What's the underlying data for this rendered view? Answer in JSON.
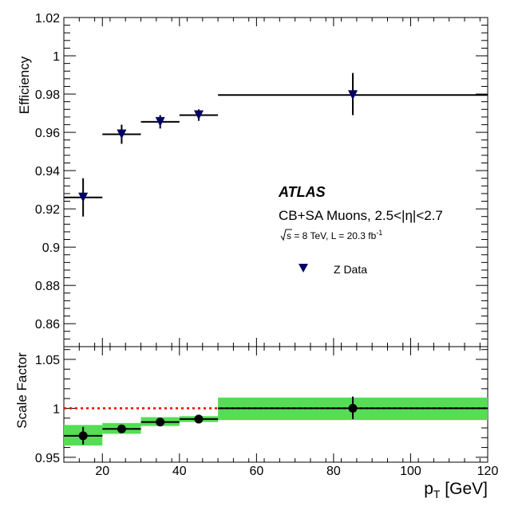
{
  "chart_data": [
    {
      "type": "scatter",
      "panel": "top",
      "ylabel": "Efficiency",
      "xlabel": "",
      "xlim": [
        10,
        120
      ],
      "ylim": [
        0.848,
        1.02
      ],
      "y_ticks": [
        0.86,
        0.88,
        0.9,
        0.92,
        0.94,
        0.96,
        0.98,
        1.0,
        1.02
      ],
      "y_tick_labels": [
        "0.86",
        "0.88",
        "0.9",
        "0.92",
        "0.94",
        "0.96",
        "0.98",
        "1",
        "1.02"
      ],
      "series": [
        {
          "name": "Z Data",
          "marker": "triangle-down",
          "color": "#000066",
          "points": [
            {
              "x": 15,
              "xlo": 10,
              "xhi": 20,
              "y": 0.926,
              "ylo": 0.916,
              "yhi": 0.936
            },
            {
              "x": 25,
              "xlo": 20,
              "xhi": 30,
              "y": 0.959,
              "ylo": 0.954,
              "yhi": 0.964
            },
            {
              "x": 35,
              "xlo": 30,
              "xhi": 40,
              "y": 0.9655,
              "ylo": 0.962,
              "yhi": 0.969
            },
            {
              "x": 45,
              "xlo": 40,
              "xhi": 50,
              "y": 0.969,
              "ylo": 0.966,
              "yhi": 0.972
            },
            {
              "x": 85,
              "xlo": 50,
              "xhi": 120,
              "y": 0.9795,
              "ylo": 0.969,
              "yhi": 0.991
            }
          ]
        }
      ],
      "annotations": {
        "experiment": "ATLAS",
        "selection": "CB+SA Muons, 2.5<|η|<2.7",
        "lumi_sqrt": "s",
        "lumi_rest": " = 8 TeV, L = 20.3 fb",
        "lumi_exp": "-1"
      },
      "legend": [
        {
          "label": "Z Data",
          "marker": "triangle-down"
        }
      ]
    },
    {
      "type": "scatter",
      "panel": "bottom",
      "ylabel": "Scale Factor",
      "xlabel": "p_T [GeV]",
      "xlabel_main": "p",
      "xlabel_sub": "T",
      "xlabel_unit": " [GeV]",
      "xlim": [
        10,
        120
      ],
      "ylim": [
        0.945,
        1.063
      ],
      "x_ticks": [
        20,
        40,
        60,
        80,
        100,
        120
      ],
      "x_tick_labels": [
        "20",
        "40",
        "60",
        "80",
        "100",
        "120"
      ],
      "y_ticks": [
        0.95,
        1.0,
        1.05
      ],
      "y_tick_labels": [
        "0.95",
        "1",
        "1.05"
      ],
      "reference_line": 1.0,
      "band_color": "#55dd55",
      "series": [
        {
          "name": "Scale Factor",
          "marker": "circle",
          "color": "#000000",
          "points": [
            {
              "x": 15,
              "xlo": 10,
              "xhi": 20,
              "y": 0.972,
              "ylo": 0.963,
              "yhi": 0.981,
              "syslo": 0.962,
              "syshi": 0.983
            },
            {
              "x": 25,
              "xlo": 20,
              "xhi": 30,
              "y": 0.979,
              "ylo": 0.976,
              "yhi": 0.982,
              "syslo": 0.974,
              "syshi": 0.985
            },
            {
              "x": 35,
              "xlo": 30,
              "xhi": 40,
              "y": 0.986,
              "ylo": 0.984,
              "yhi": 0.988,
              "syslo": 0.982,
              "syshi": 0.991
            },
            {
              "x": 45,
              "xlo": 40,
              "xhi": 50,
              "y": 0.989,
              "ylo": 0.987,
              "yhi": 0.991,
              "syslo": 0.986,
              "syshi": 0.992
            },
            {
              "x": 85,
              "xlo": 50,
              "xhi": 120,
              "y": 1.0,
              "ylo": 0.989,
              "yhi": 1.012,
              "syslo": 0.988,
              "syshi": 1.011
            }
          ]
        }
      ]
    }
  ]
}
